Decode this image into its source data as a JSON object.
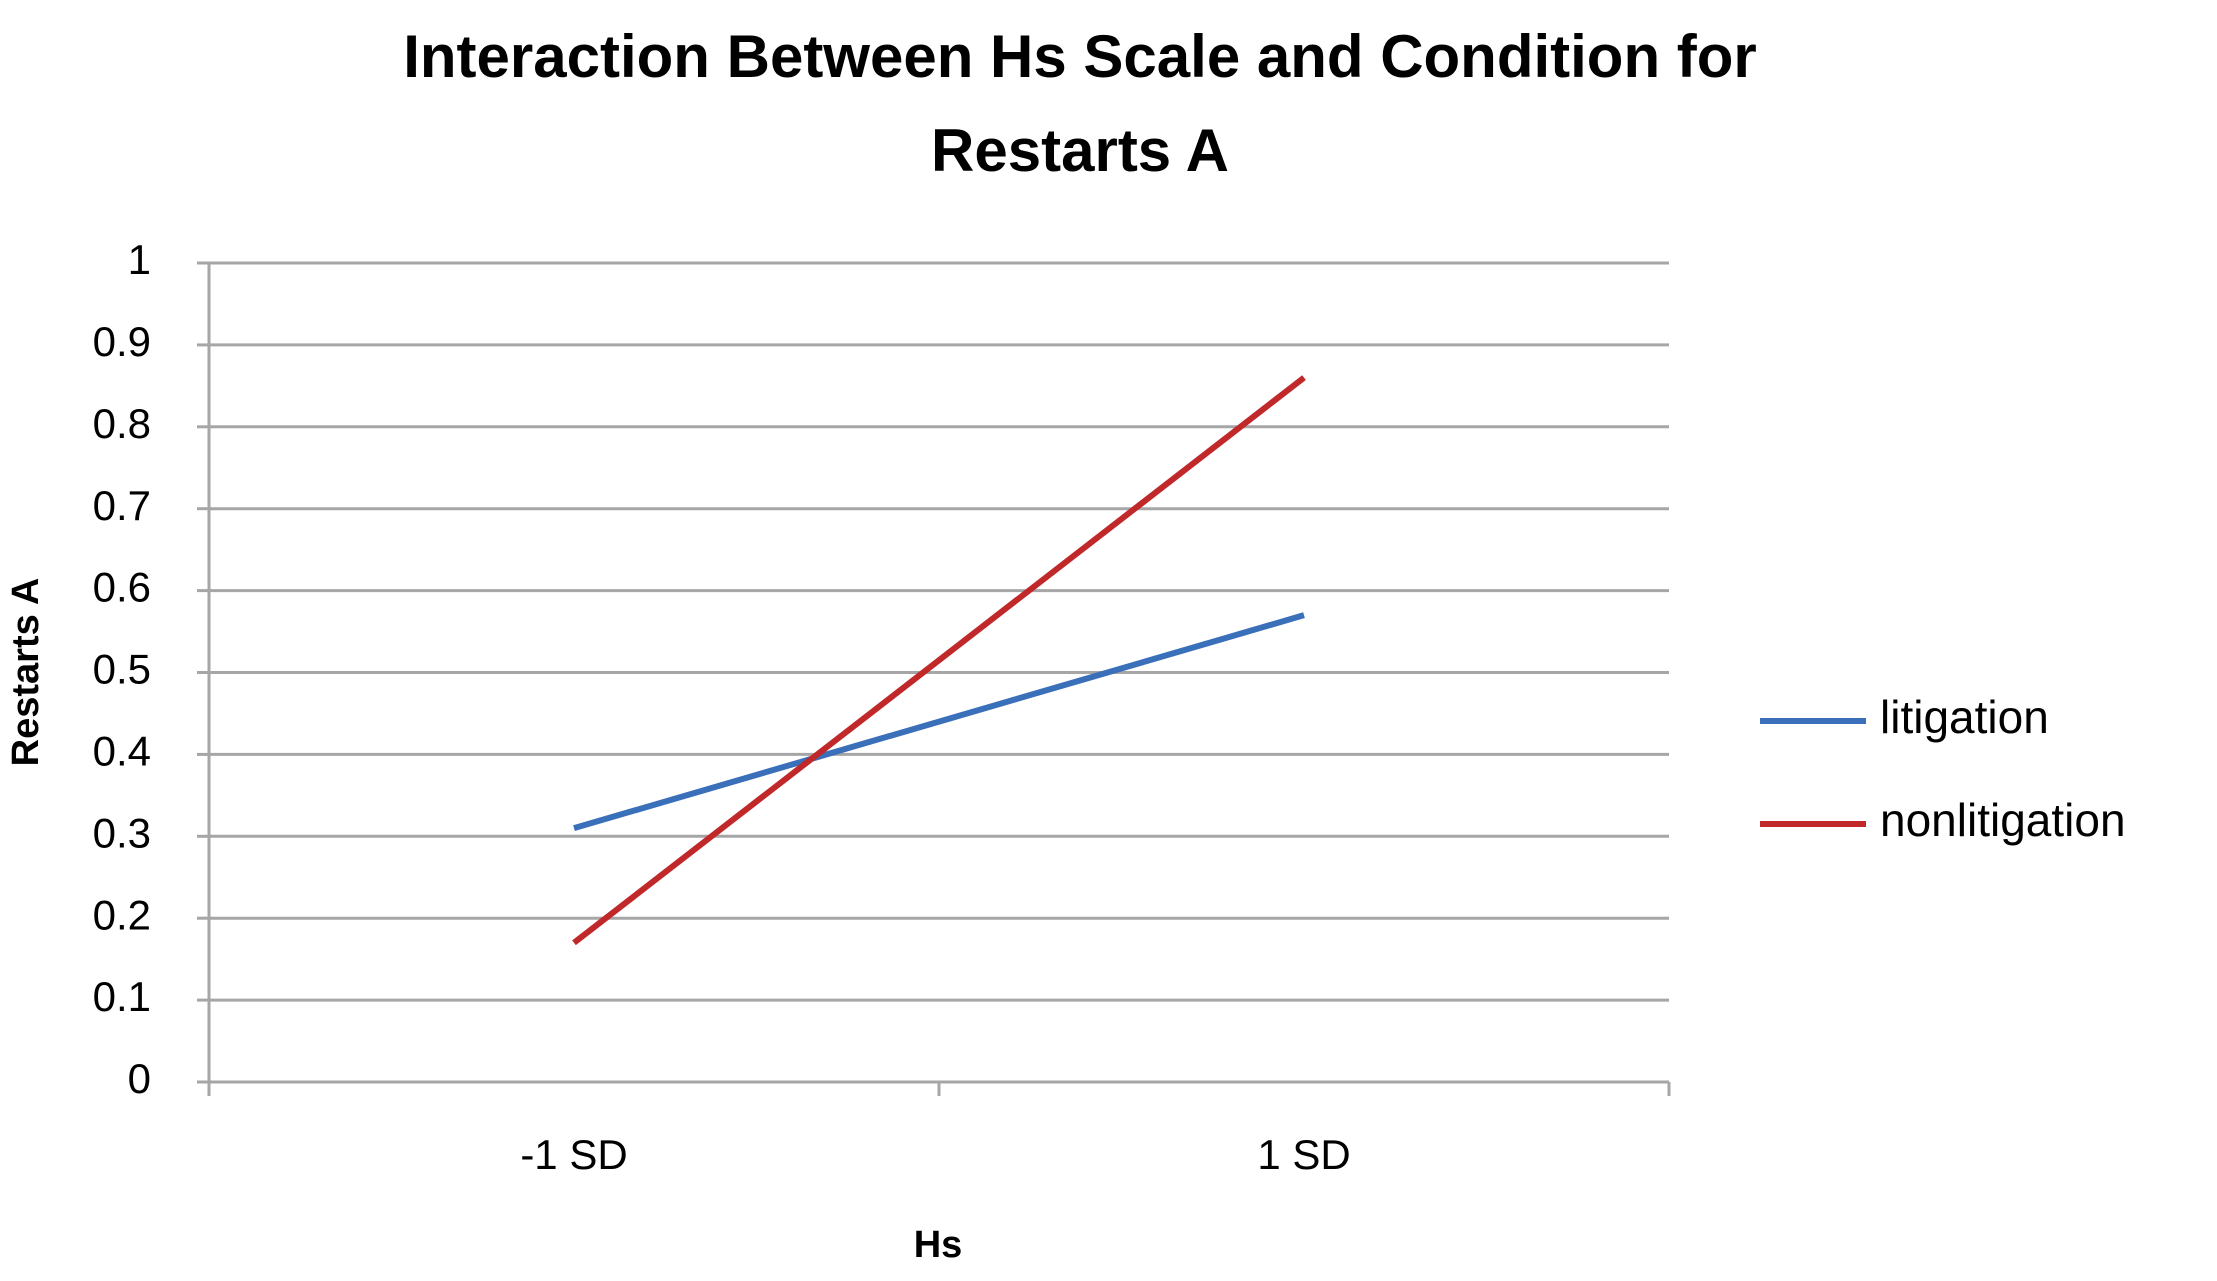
{
  "chart_data": {
    "type": "line",
    "title": "Interaction Between Hs Scale and Condition for Restarts A",
    "x_label": "Hs",
    "y_label": "Restarts A",
    "categories": [
      "-1 SD",
      "1 SD"
    ],
    "series": [
      {
        "name": "litigation",
        "color": "#3a6fba",
        "values": [
          0.31,
          0.57
        ]
      },
      {
        "name": "nonlitigation",
        "color": "#c0282a",
        "values": [
          0.17,
          0.86
        ]
      }
    ],
    "ylim": [
      0,
      1
    ],
    "yticks": [
      0,
      0.1,
      0.2,
      0.3,
      0.4,
      0.5,
      0.6,
      0.7,
      0.8,
      0.9,
      1
    ],
    "grid": true,
    "legend": "right"
  }
}
